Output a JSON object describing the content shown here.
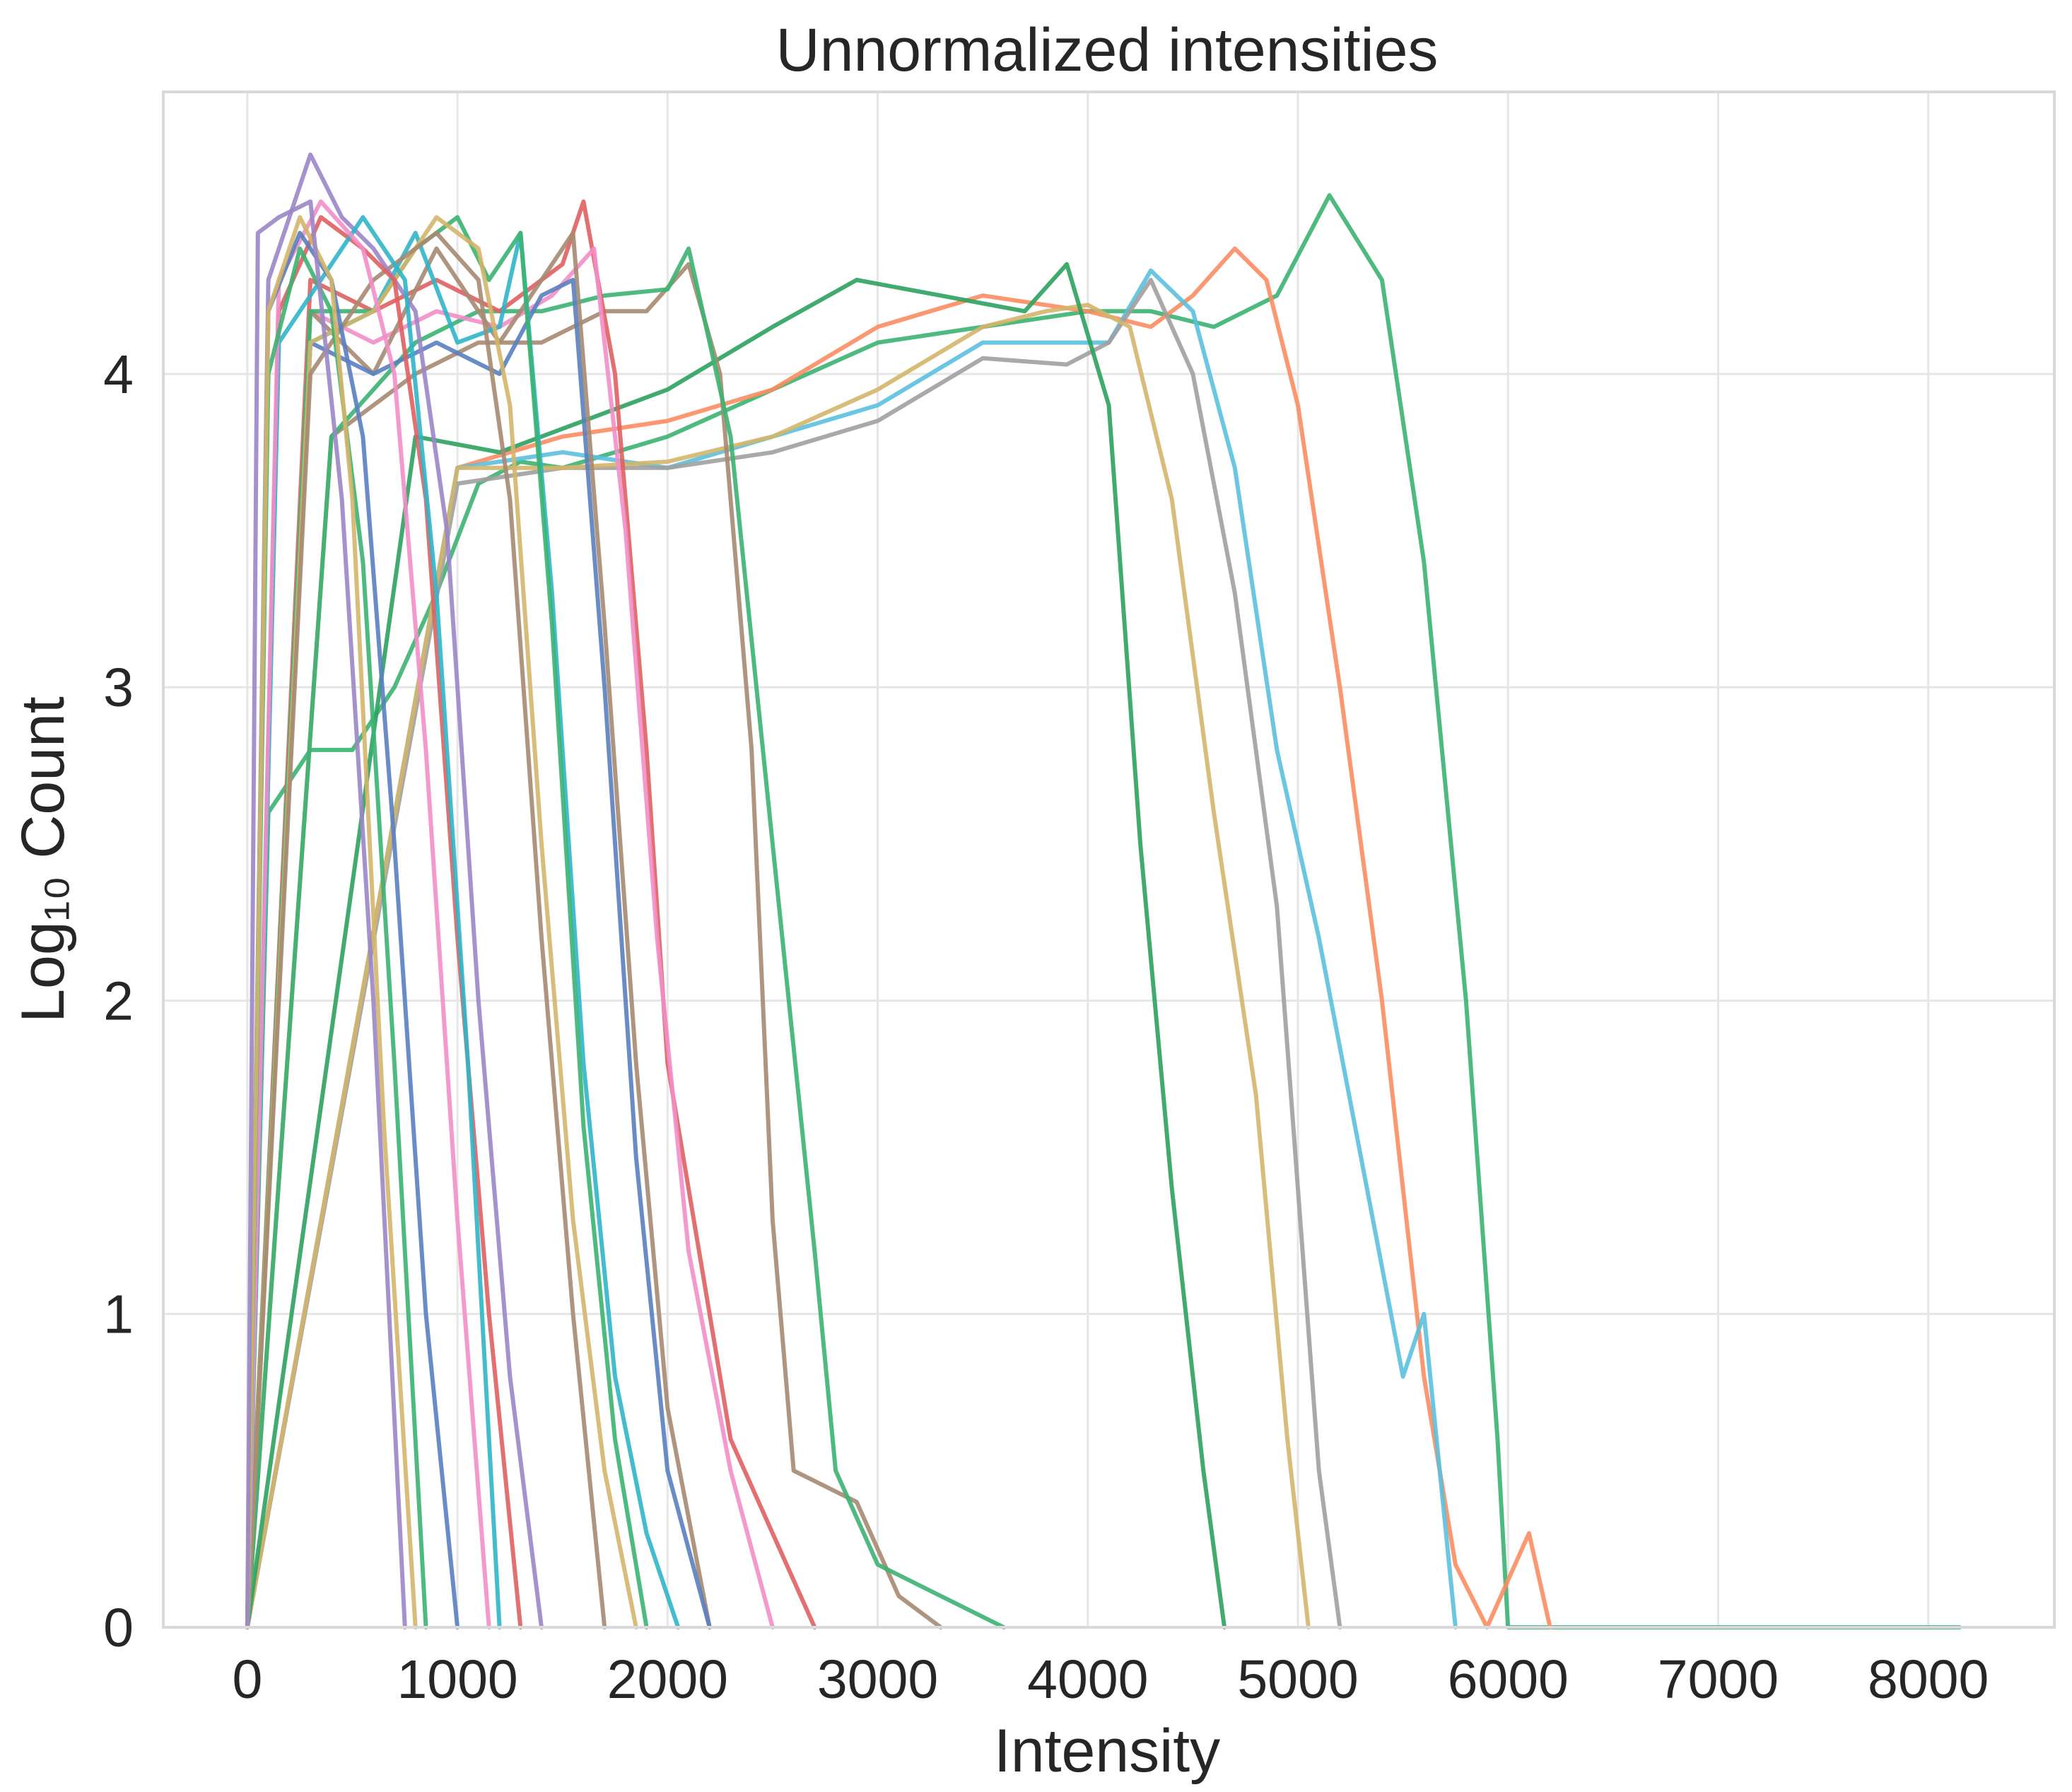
{
  "chart_data": {
    "type": "line",
    "title": "Unnormalized intensities",
    "xlabel": "Intensity",
    "ylabel": "Log₁₀ Count",
    "xlim": [
      -400,
      8600
    ],
    "ylim": [
      0,
      4.9
    ],
    "x_ticks": [
      "0",
      "1000",
      "2000",
      "3000",
      "4000",
      "5000",
      "6000",
      "7000",
      "8000"
    ],
    "y_ticks": [
      "0",
      "1",
      "2",
      "3",
      "4"
    ],
    "grid": true,
    "legend": "none",
    "series": [
      {
        "color": "#3cb371",
        "x": [
          0,
          100,
          300,
          500,
          700,
          900,
          1100,
          1300,
          1500,
          2000,
          2500,
          3000,
          3500,
          4000,
          4300,
          4600,
          4900,
          5150,
          5400,
          5600,
          5800,
          5950,
          6000,
          8150
        ],
        "y": [
          0,
          2.6,
          2.8,
          2.8,
          3.0,
          3.3,
          3.65,
          3.72,
          3.7,
          3.8,
          3.95,
          4.1,
          4.15,
          4.2,
          4.2,
          4.15,
          4.25,
          4.57,
          4.3,
          3.4,
          2.0,
          0.6,
          0,
          0
        ]
      },
      {
        "color": "#fc8d62",
        "x": [
          0,
          1000,
          1500,
          2000,
          2500,
          3000,
          3500,
          4000,
          4300,
          4500,
          4700,
          4850,
          5000,
          5200,
          5400,
          5600,
          5750,
          5900,
          6100,
          6200
        ],
        "y": [
          0,
          3.7,
          3.8,
          3.85,
          3.95,
          4.15,
          4.25,
          4.2,
          4.15,
          4.25,
          4.4,
          4.3,
          3.9,
          3.0,
          2.0,
          0.8,
          0.2,
          0,
          0.3,
          0
        ]
      },
      {
        "color": "#5bc0de",
        "x": [
          0,
          1000,
          1500,
          2000,
          2500,
          3000,
          3500,
          3900,
          4100,
          4300,
          4500,
          4700,
          4900,
          5100,
          5300,
          5500,
          5600,
          5750
        ],
        "y": [
          0,
          3.7,
          3.75,
          3.7,
          3.8,
          3.9,
          4.1,
          4.1,
          4.1,
          4.33,
          4.2,
          3.7,
          2.8,
          2.2,
          1.5,
          0.8,
          1.0,
          0
        ]
      },
      {
        "color": "#a0a0a0",
        "x": [
          0,
          1000,
          1500,
          2000,
          2500,
          3000,
          3500,
          3900,
          4100,
          4300,
          4500,
          4700,
          4900,
          5000,
          5100,
          5200
        ],
        "y": [
          0,
          3.65,
          3.7,
          3.7,
          3.75,
          3.85,
          4.05,
          4.03,
          4.1,
          4.3,
          4.0,
          3.3,
          2.3,
          1.4,
          0.5,
          0
        ]
      },
      {
        "color": "#d4b56a",
        "x": [
          0,
          1000,
          1500,
          2000,
          2500,
          3000,
          3500,
          3800,
          4000,
          4200,
          4400,
          4600,
          4800,
          4950,
          5050
        ],
        "y": [
          0,
          3.7,
          3.7,
          3.72,
          3.8,
          3.95,
          4.15,
          4.2,
          4.22,
          4.15,
          3.6,
          2.6,
          1.7,
          0.6,
          0
        ]
      },
      {
        "color": "#2ca25f",
        "x": [
          0,
          800,
          1200,
          1600,
          2000,
          2500,
          2900,
          3300,
          3700,
          3900,
          4100,
          4250,
          4400,
          4550,
          4650
        ],
        "y": [
          0,
          3.8,
          3.75,
          3.85,
          3.95,
          4.15,
          4.3,
          4.25,
          4.2,
          4.35,
          3.9,
          2.5,
          1.4,
          0.5,
          0
        ]
      },
      {
        "color": "#a68a72",
        "x": [
          0,
          400,
          800,
          1100,
          1400,
          1700,
          1900,
          2100,
          2250,
          2400,
          2500,
          2600,
          2900,
          3100,
          3300
        ],
        "y": [
          0,
          3.8,
          4.0,
          4.1,
          4.1,
          4.2,
          4.2,
          4.35,
          4.0,
          2.8,
          1.3,
          0.5,
          0.4,
          0.1,
          0
        ]
      },
      {
        "color": "#3cb371",
        "x": [
          0,
          400,
          800,
          1100,
          1400,
          1700,
          2000,
          2100,
          2300,
          2500,
          2700,
          2800,
          3000,
          3300,
          3600
        ],
        "y": [
          0,
          3.8,
          4.1,
          4.2,
          4.2,
          4.25,
          4.27,
          4.4,
          3.8,
          2.5,
          1.2,
          0.5,
          0.2,
          0.1,
          0
        ]
      },
      {
        "color": "#e06060",
        "x": [
          0,
          300,
          600,
          900,
          1200,
          1500,
          1600,
          1750,
          1900,
          2000,
          2150,
          2300,
          2500,
          2700
        ],
        "y": [
          0,
          4.3,
          4.2,
          4.3,
          4.2,
          4.35,
          4.55,
          4.0,
          2.8,
          1.8,
          1.2,
          0.6,
          0.3,
          0
        ]
      },
      {
        "color": "#f28ec8",
        "x": [
          0,
          300,
          600,
          900,
          1200,
          1450,
          1650,
          1800,
          1950,
          2100,
          2300,
          2500
        ],
        "y": [
          0,
          4.2,
          4.1,
          4.2,
          4.15,
          4.25,
          4.4,
          3.5,
          2.2,
          1.2,
          0.5,
          0
        ]
      },
      {
        "color": "#a68a72",
        "x": [
          0,
          300,
          600,
          900,
          1200,
          1400,
          1550,
          1700,
          1850,
          2000,
          2200
        ],
        "y": [
          0,
          4.2,
          4.0,
          4.4,
          4.1,
          4.3,
          4.45,
          3.2,
          1.8,
          0.7,
          0
        ]
      },
      {
        "color": "#5a7fc0",
        "x": [
          0,
          300,
          600,
          900,
          1200,
          1400,
          1550,
          1700,
          1850,
          2000,
          2200
        ],
        "y": [
          0,
          4.1,
          4.0,
          4.1,
          4.0,
          4.25,
          4.3,
          3.0,
          1.5,
          0.5,
          0
        ]
      },
      {
        "color": "#2fb5c9",
        "x": [
          0,
          300,
          600,
          800,
          1000,
          1200,
          1300,
          1450,
          1600,
          1750,
          1900,
          2050
        ],
        "y": [
          0,
          4.1,
          4.2,
          4.45,
          4.1,
          4.15,
          4.45,
          3.3,
          1.8,
          0.8,
          0.3,
          0
        ]
      },
      {
        "color": "#3cb371",
        "x": [
          0,
          300,
          600,
          800,
          1000,
          1150,
          1300,
          1450,
          1600,
          1750,
          1900
        ],
        "y": [
          0,
          4.2,
          4.2,
          4.4,
          4.5,
          4.3,
          4.45,
          3.2,
          1.6,
          0.6,
          0
        ]
      },
      {
        "color": "#d4b56a",
        "x": [
          0,
          300,
          600,
          900,
          1100,
          1250,
          1400,
          1550,
          1700,
          1850
        ],
        "y": [
          0,
          4.1,
          4.2,
          4.5,
          4.4,
          3.9,
          2.5,
          1.3,
          0.5,
          0
        ]
      },
      {
        "color": "#a68a72",
        "x": [
          0,
          300,
          600,
          900,
          1100,
          1250,
          1400,
          1550,
          1700
        ],
        "y": [
          0,
          4.0,
          4.3,
          4.45,
          4.3,
          3.6,
          2.2,
          1.0,
          0
        ]
      },
      {
        "color": "#9b86c8",
        "x": [
          0,
          100,
          300,
          450,
          600,
          800,
          950,
          1100,
          1250,
          1400
        ],
        "y": [
          0,
          4.3,
          4.7,
          4.5,
          4.4,
          4.2,
          3.5,
          2.0,
          0.8,
          0
        ]
      },
      {
        "color": "#e06060",
        "x": [
          0,
          150,
          350,
          550,
          700,
          850,
          1000,
          1150,
          1300
        ],
        "y": [
          0,
          4.2,
          4.5,
          4.4,
          4.3,
          3.6,
          2.2,
          1.0,
          0
        ]
      },
      {
        "color": "#2fb5c9",
        "x": [
          0,
          150,
          350,
          550,
          750,
          900,
          1050,
          1200
        ],
        "y": [
          0,
          4.1,
          4.3,
          4.5,
          4.3,
          3.3,
          1.8,
          0
        ]
      },
      {
        "color": "#f28ec8",
        "x": [
          0,
          150,
          350,
          550,
          700,
          850,
          1000,
          1150
        ],
        "y": [
          0,
          4.3,
          4.55,
          4.4,
          4.0,
          2.8,
          1.3,
          0
        ]
      },
      {
        "color": "#5a7fc0",
        "x": [
          0,
          100,
          250,
          400,
          550,
          700,
          850,
          1000
        ],
        "y": [
          0,
          4.2,
          4.45,
          4.3,
          3.8,
          2.5,
          1.0,
          0
        ]
      },
      {
        "color": "#3cb371",
        "x": [
          0,
          100,
          250,
          400,
          550,
          700,
          850
        ],
        "y": [
          0,
          4.0,
          4.4,
          4.2,
          3.4,
          1.8,
          0
        ]
      },
      {
        "color": "#d4b56a",
        "x": [
          0,
          100,
          250,
          400,
          500,
          650,
          800
        ],
        "y": [
          0,
          4.2,
          4.5,
          4.3,
          3.6,
          1.6,
          0
        ]
      },
      {
        "color": "#9b86c8",
        "x": [
          0,
          50,
          150,
          300,
          450,
          600,
          750
        ],
        "y": [
          0,
          4.45,
          4.5,
          4.55,
          3.6,
          2.0,
          0
        ]
      }
    ]
  }
}
